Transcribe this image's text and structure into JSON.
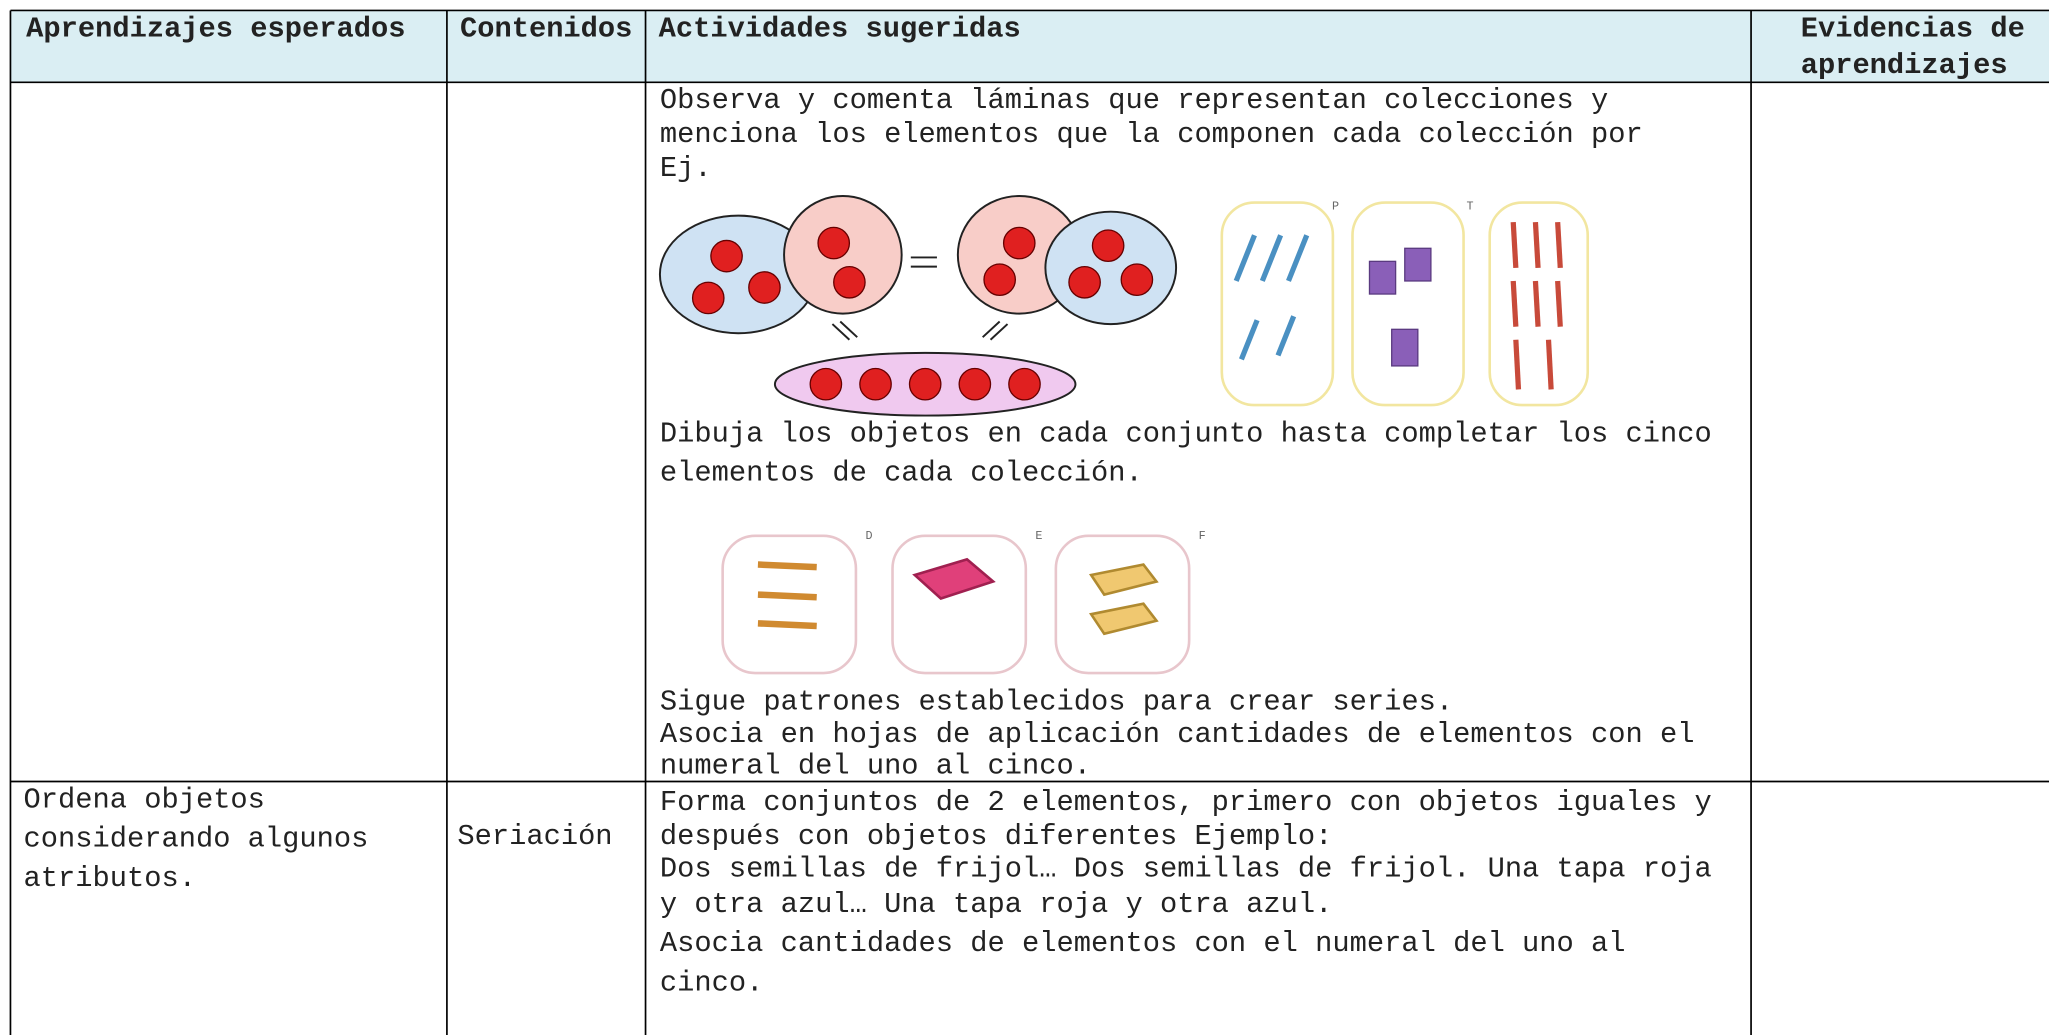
{
  "table": {
    "headers": [
      [
        "Aprendizajes esperados"
      ],
      [
        "Contenidos"
      ],
      [
        "Actividades  sugeridas"
      ],
      [
        "Evidencias de",
        "aprendizajes"
      ]
    ],
    "rows": [
      {
        "activities": [
          "Observa y comenta láminas que representan colecciones y",
          "menciona los elementos que la componen cada colección  por",
          "Ej.",
          "Dibuja los objetos en cada conjunto hasta completar los cinco",
          "elementos de cada colección.",
          "Sigue patrones establecidos para crear series.",
          "Asocia  en hojas de aplicación cantidades de elementos con el",
          "numeral del uno al cinco."
        ],
        "figure_labels": [
          "P",
          "T",
          "D",
          "E",
          "F"
        ]
      },
      {
        "learning": [
          "Ordena objetos",
          "considerando algunos",
          "atributos."
        ],
        "content": "Seriación",
        "activities": [
          "Forma conjuntos de 2 elementos, primero con objetos iguales y",
          "después con objetos diferentes Ejemplo:",
          "Dos semillas de frijol… Dos semillas de frijol. Una tapa roja",
          "y otra azul… Una tapa roja y otra azul.",
          "Asocia cantidades de elementos con el numeral del uno al",
          "cinco."
        ]
      }
    ]
  }
}
